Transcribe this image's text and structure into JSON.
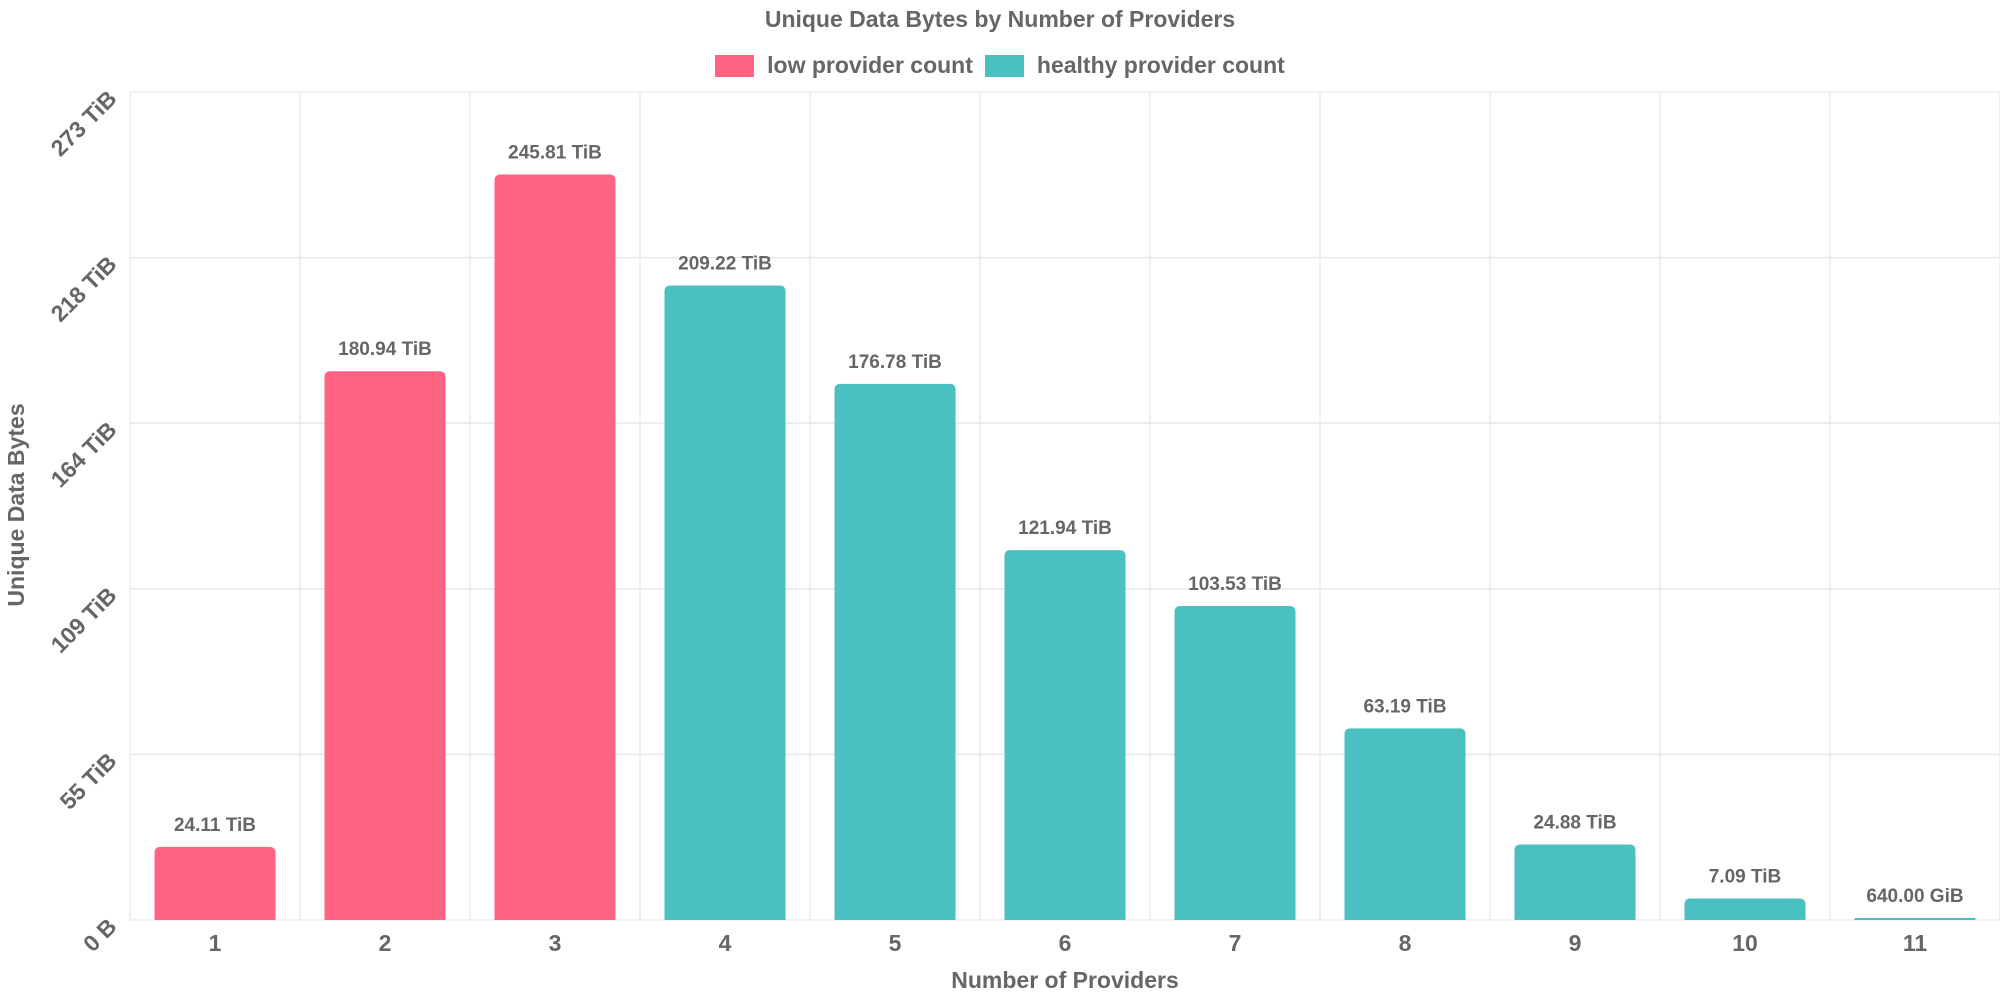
{
  "chart_data": {
    "type": "bar",
    "title": "Unique Data Bytes by Number of Providers",
    "xlabel": "Number of Providers",
    "ylabel": "Unique Data Bytes",
    "categories": [
      "1",
      "2",
      "3",
      "4",
      "5",
      "6",
      "7",
      "8",
      "9",
      "10",
      "11"
    ],
    "values_tib": [
      24.11,
      180.94,
      245.81,
      209.22,
      176.78,
      121.94,
      103.53,
      63.19,
      24.88,
      7.09,
      0.625
    ],
    "data_labels": [
      "24.11 TiB",
      "180.94 TiB",
      "245.81 TiB",
      "209.22 TiB",
      "176.78 TiB",
      "121.94 TiB",
      "103.53 TiB",
      "63.19 TiB",
      "24.88 TiB",
      "7.09 TiB",
      "640.00 GiB"
    ],
    "series_index": [
      0,
      0,
      0,
      1,
      1,
      1,
      1,
      1,
      1,
      1,
      1
    ],
    "series": [
      {
        "name": "low provider count",
        "color": "#ff6384"
      },
      {
        "name": "healthy provider count",
        "color": "#4bc0c0"
      }
    ],
    "y_ticks": [
      {
        "value": 0,
        "label": "0 B"
      },
      {
        "value": 54.6,
        "label": "55 TiB"
      },
      {
        "value": 109.2,
        "label": "109 TiB"
      },
      {
        "value": 163.8,
        "label": "164 TiB"
      },
      {
        "value": 218.4,
        "label": "218 TiB"
      },
      {
        "value": 273,
        "label": "273 TiB"
      }
    ],
    "ylim": [
      0,
      273
    ],
    "grid": true,
    "legend_position": "top-center"
  }
}
